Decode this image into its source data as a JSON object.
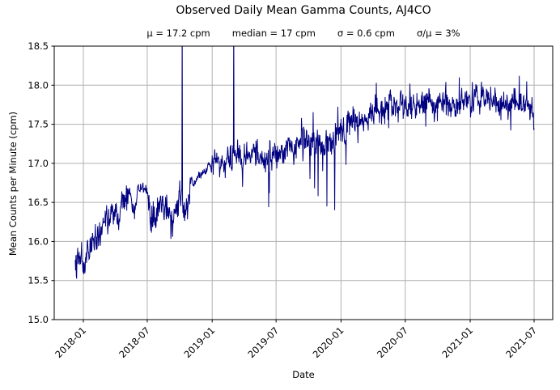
{
  "title": "Observed Daily Mean Gamma Counts, AJ4CO",
  "stats": {
    "mu": "μ = 17.2 cpm",
    "median": "median = 17 cpm",
    "sigma": "σ = 0.6 cpm",
    "ratio": "σ/μ = 3%"
  },
  "axes": {
    "xlabel": "Date",
    "ylabel": "Mean Counts per Minute (cpm)",
    "xticks": [
      "2018-01",
      "2018-07",
      "2019-01",
      "2019-07",
      "2020-01",
      "2020-07",
      "2021-01",
      "2021-07"
    ],
    "yticks": [
      "15.0",
      "15.5",
      "16.0",
      "16.5",
      "17.0",
      "17.5",
      "18.0",
      "18.5"
    ]
  },
  "chart_data": {
    "type": "line",
    "title": "Observed Daily Mean Gamma Counts, AJ4CO",
    "xlabel": "Date",
    "ylabel": "Mean Counts per Minute (cpm)",
    "ylim": [
      15.0,
      18.5
    ],
    "x_range": [
      "2017-12-09",
      "2021-07-01"
    ],
    "grid": true,
    "line_color": "#000080",
    "grid_color": "#b0b0b0",
    "spine_color": "#000000",
    "background_color": "#ffffff",
    "stats": {
      "mean_cpm": 17.2,
      "median_cpm": 17,
      "sigma_cpm": 0.6,
      "sigma_over_mu_pct": 3
    },
    "noise_seed": 42,
    "trend_anchors": [
      [
        "2017-12-09",
        15.82
      ],
      [
        "2017-12-18",
        15.78
      ],
      [
        "2018-01-01",
        15.72
      ],
      [
        "2018-01-10",
        15.8
      ],
      [
        "2018-01-25",
        15.95
      ],
      [
        "2018-02-10",
        16.05
      ],
      [
        "2018-03-01",
        16.18
      ],
      [
        "2018-03-20",
        16.3
      ],
      [
        "2018-04-10",
        16.42
      ],
      [
        "2018-05-01",
        16.52
      ],
      [
        "2018-05-12",
        16.7
      ],
      [
        "2018-05-25",
        16.4
      ],
      [
        "2018-06-05",
        16.7
      ],
      [
        "2018-06-20",
        16.66
      ],
      [
        "2018-06-30",
        16.62
      ],
      [
        "2018-07-08",
        16.42
      ],
      [
        "2018-07-22",
        16.3
      ],
      [
        "2018-08-08",
        16.48
      ],
      [
        "2018-08-25",
        16.4
      ],
      [
        "2018-09-05",
        16.22
      ],
      [
        "2018-09-18",
        16.32
      ],
      [
        "2018-10-01",
        16.55
      ],
      [
        "2018-10-06",
        16.68
      ],
      [
        "2018-10-14",
        16.42
      ],
      [
        "2018-10-28",
        16.48
      ],
      [
        "2018-11-05",
        16.65
      ],
      [
        "2018-11-22",
        16.82
      ],
      [
        "2018-12-08",
        16.88
      ],
      [
        "2018-12-26",
        16.95
      ],
      [
        "2019-01-15",
        17.0
      ],
      [
        "2019-02-10",
        17.06
      ],
      [
        "2019-03-10",
        17.1
      ],
      [
        "2019-04-10",
        17.05
      ],
      [
        "2019-05-10",
        17.12
      ],
      [
        "2019-06-05",
        17.06
      ],
      [
        "2019-07-01",
        17.12
      ],
      [
        "2019-08-01",
        17.2
      ],
      [
        "2019-09-01",
        17.22
      ],
      [
        "2019-10-01",
        17.28
      ],
      [
        "2019-11-01",
        17.25
      ],
      [
        "2019-12-01",
        17.32
      ],
      [
        "2020-01-01",
        17.38
      ],
      [
        "2020-02-01",
        17.48
      ],
      [
        "2020-03-01",
        17.58
      ],
      [
        "2020-04-01",
        17.68
      ],
      [
        "2020-05-01",
        17.74
      ],
      [
        "2020-07-01",
        17.74
      ],
      [
        "2020-09-01",
        17.78
      ],
      [
        "2020-11-01",
        17.74
      ],
      [
        "2021-01-01",
        17.8
      ],
      [
        "2021-02-15",
        17.8
      ],
      [
        "2021-04-01",
        17.76
      ],
      [
        "2021-05-15",
        17.78
      ],
      [
        "2021-07-01",
        17.66
      ]
    ],
    "noise_sd_anchors": [
      [
        "2017-12-09",
        0.085
      ],
      [
        "2018-05-08",
        0.085
      ],
      [
        "2018-05-14",
        0.05
      ],
      [
        "2018-06-02",
        0.05
      ],
      [
        "2018-06-05",
        0.025
      ],
      [
        "2018-07-01",
        0.025
      ],
      [
        "2018-07-06",
        0.1
      ],
      [
        "2018-10-31",
        0.1
      ],
      [
        "2018-11-06",
        0.025
      ],
      [
        "2018-12-27",
        0.025
      ],
      [
        "2019-01-04",
        0.085
      ],
      [
        "2019-08-31",
        0.085
      ],
      [
        "2019-09-02",
        0.115
      ],
      [
        "2019-12-30",
        0.115
      ],
      [
        "2020-01-02",
        0.09
      ],
      [
        "2020-04-15",
        0.08
      ],
      [
        "2021-07-01",
        0.08
      ]
    ],
    "clipped_spike_dates": [
      "2018-10-08",
      "2019-03-03"
    ],
    "events": [
      [
        "2018-01-02",
        15.58
      ],
      [
        "2018-01-06",
        15.62
      ],
      [
        "2018-10-08",
        19.0
      ],
      [
        "2019-03-03",
        19.0
      ],
      [
        "2019-03-28",
        16.7
      ],
      [
        "2019-06-10",
        16.44
      ],
      [
        "2019-06-12",
        16.62
      ],
      [
        "2019-08-20",
        16.98
      ],
      [
        "2019-10-05",
        16.8
      ],
      [
        "2019-10-18",
        16.68
      ],
      [
        "2019-10-28",
        16.58
      ],
      [
        "2019-11-10",
        16.9
      ],
      [
        "2019-11-22",
        16.45
      ],
      [
        "2019-12-14",
        16.4
      ],
      [
        "2020-01-15",
        16.98
      ],
      [
        "2020-03-18",
        17.42
      ],
      [
        "2020-04-10",
        18.03
      ],
      [
        "2020-05-15",
        17.45
      ],
      [
        "2020-07-14",
        18.02
      ],
      [
        "2020-08-28",
        17.47
      ],
      [
        "2020-10-24",
        18.04
      ],
      [
        "2020-12-01",
        18.1
      ],
      [
        "2021-01-07",
        18.04
      ],
      [
        "2021-04-26",
        17.42
      ],
      [
        "2021-05-20",
        18.12
      ],
      [
        "2021-06-10",
        18.05
      ]
    ]
  }
}
